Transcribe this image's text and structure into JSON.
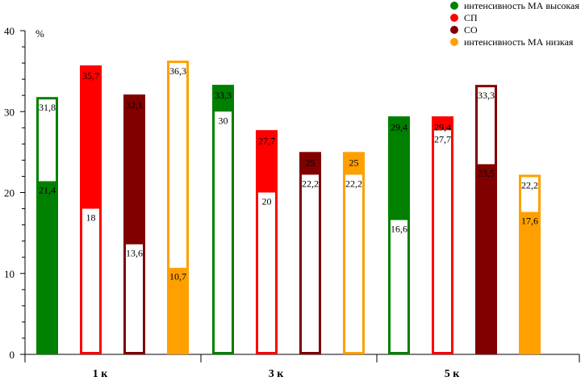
{
  "chart_data": {
    "type": "bar",
    "ylabel": "%",
    "ylim": [
      0,
      40
    ],
    "yticks": [
      "0",
      "10",
      "20",
      "30",
      "40"
    ],
    "groups": [
      "1 к",
      "3 к",
      "5 к"
    ],
    "legend": {
      "position": "top-right",
      "items": [
        {
          "label": "интенсивность МА высокая",
          "color": "#008000"
        },
        {
          "label": "СП",
          "color": "#ff0000"
        },
        {
          "label": "СО",
          "color": "#800000"
        },
        {
          "label": "интенсивность МА низкая",
          "color": "#ffa000"
        }
      ]
    },
    "series": [
      {
        "color": "#008000",
        "bars": [
          {
            "filled": 21.4,
            "total": 31.8,
            "filled_label": "21,4",
            "total_label": "31,8"
          },
          {
            "filled": 30.0,
            "total": 33.3,
            "filled_label": "30",
            "total_label": "33,3"
          },
          {
            "filled": 16.6,
            "total": 29.4,
            "filled_label": "16,6",
            "total_label": "29,4"
          }
        ]
      },
      {
        "color": "#ff0000",
        "bars": [
          {
            "filled": 18.0,
            "total": 35.7,
            "filled_label": "18",
            "total_label": "35,7"
          },
          {
            "filled": 20.0,
            "total": 27.7,
            "filled_label": "20",
            "total_label": "27,7"
          },
          {
            "filled": 27.7,
            "total": 29.4,
            "filled_label": "27,7",
            "total_label": "29,4"
          }
        ]
      },
      {
        "color": "#800000",
        "bars": [
          {
            "filled": 13.6,
            "total": 32.1,
            "filled_label": "13,6",
            "total_label": "32,1"
          },
          {
            "filled": 22.2,
            "total": 25.0,
            "filled_label": "22,2",
            "total_label": "25"
          },
          {
            "filled": 23.5,
            "total": 33.3,
            "filled_label": "23,5",
            "total_label": "33,3"
          }
        ]
      },
      {
        "color": "#ffa000",
        "bars": [
          {
            "filled": 10.7,
            "total": 36.3,
            "filled_label": "10,7",
            "total_label": "36,3"
          },
          {
            "filled": 22.2,
            "total": 25.0,
            "filled_label": "22,2",
            "total_label": "25"
          },
          {
            "filled": 17.6,
            "total": 22.2,
            "filled_label": "17,6",
            "total_label": "22,2"
          }
        ]
      }
    ],
    "bar_styles": [
      [
        "lower-filled",
        "upper-filled",
        "upper-filled"
      ],
      [
        "upper-filled",
        "upper-filled",
        "upper-filled"
      ],
      [
        "upper-filled",
        "upper-filled",
        "lower-filled"
      ],
      [
        "lower-filled",
        "upper-filled",
        "lower-filled"
      ]
    ],
    "grid": false
  }
}
